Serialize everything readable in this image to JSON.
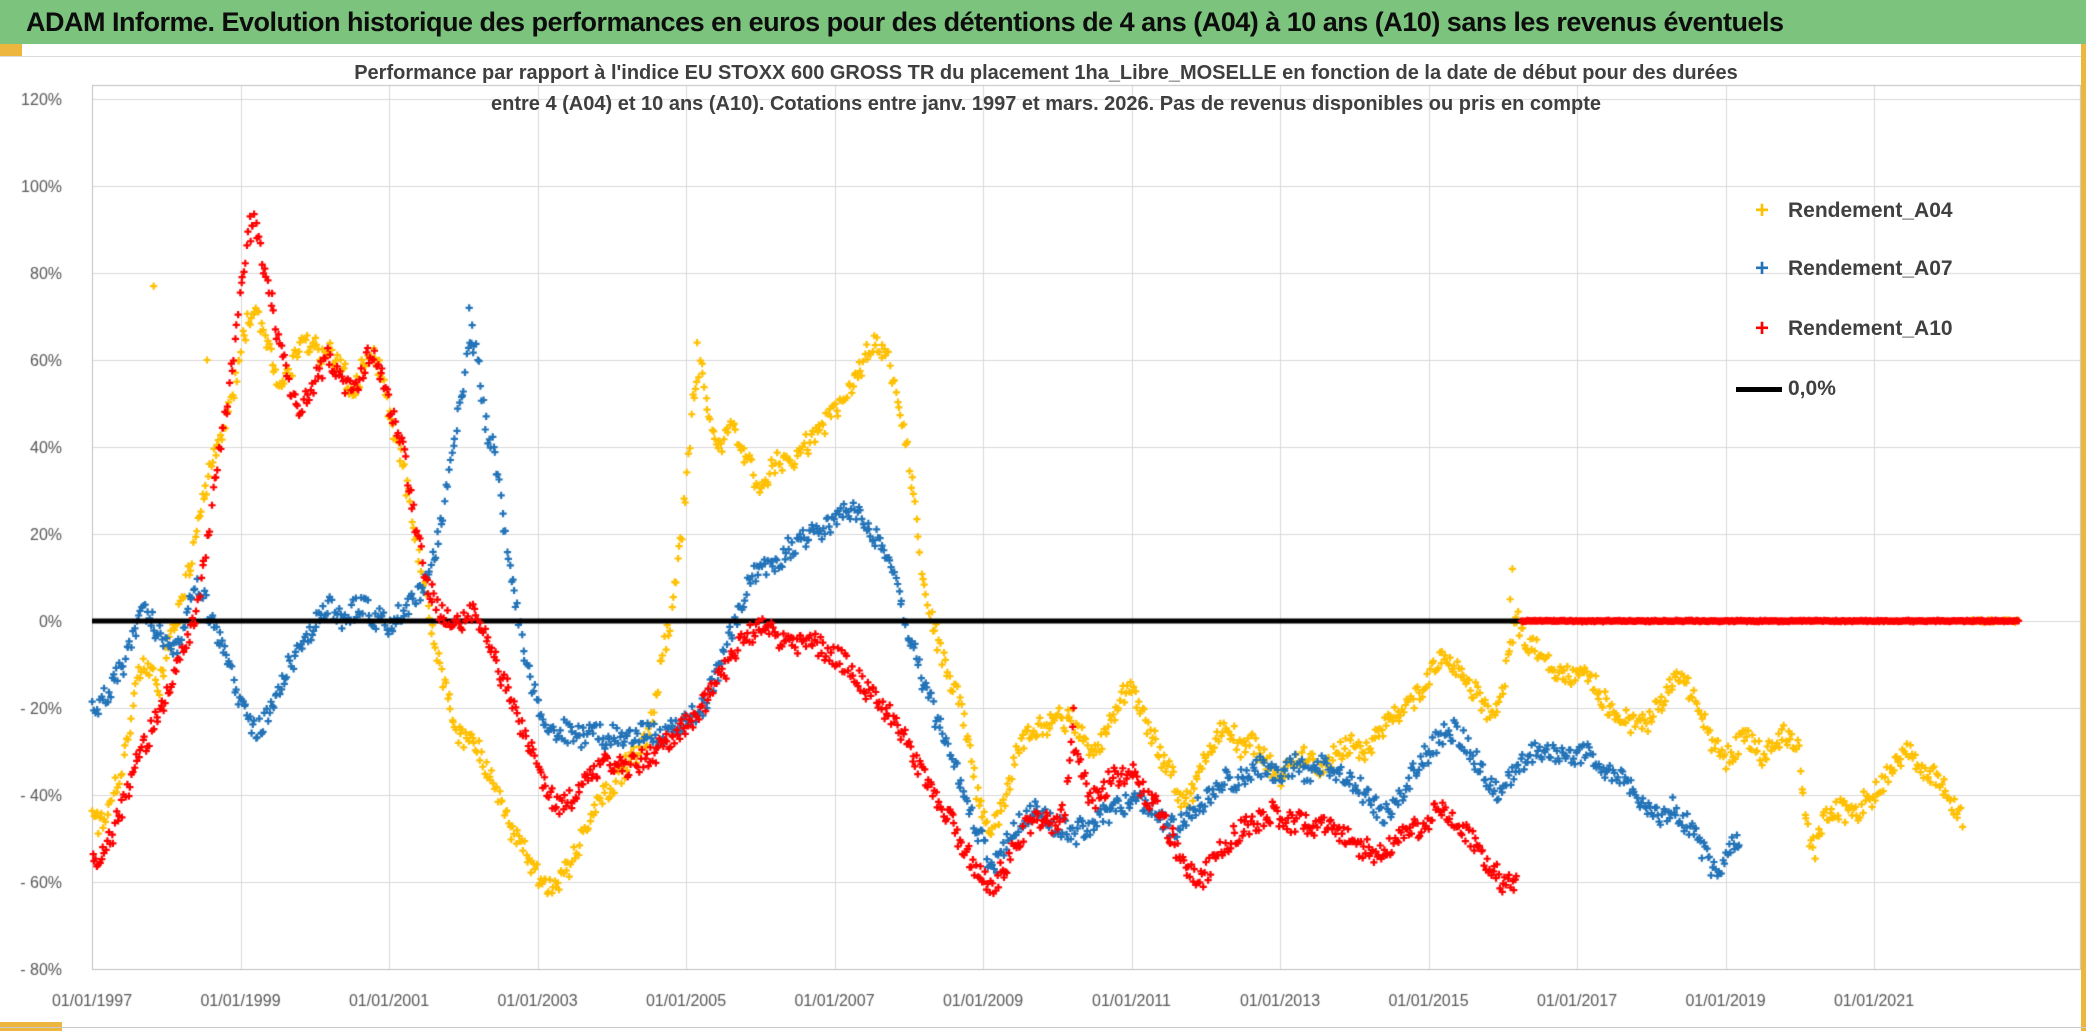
{
  "header": {
    "title": "ADAM Informe. Evolution historique des performances en euros pour des détentions de 4 ans (A04) à 10 ans (A10) sans les revenus éventuels"
  },
  "colors": {
    "header_bg": "#7CC47D",
    "accent_yellow": "#EDB63E",
    "grid": "#D9D9D9",
    "axis_border": "#BFBFBF",
    "tick_text": "#595959",
    "title_text": "#3F3F3F",
    "series_a04": "#FFC000",
    "series_a07": "#2273B8",
    "series_a10": "#FF0000",
    "zero_line": "#000000"
  },
  "chart_data": {
    "type": "scatter",
    "title_line1": "Performance par rapport à l'indice EU STOXX 600 GROSS TR  du placement 1ha_Libre_MOSELLE en fonction de la date de début pour des durées",
    "title_line2": "entre 4 (A04) et 10 ans (A10). Cotations entre janv. 1997 et mars. 2026. Pas de revenus disponibles ou pris en compte",
    "xlabel": "",
    "ylabel": "",
    "x_ticks": [
      "01/01/1997",
      "01/01/1999",
      "01/01/2001",
      "01/01/2003",
      "01/01/2005",
      "01/01/2007",
      "01/01/2009",
      "01/01/2011",
      "01/01/2013",
      "01/01/2015",
      "01/01/2017",
      "01/01/2019",
      "01/01/2021"
    ],
    "x_tick_years": [
      1997,
      1999,
      2001,
      2003,
      2005,
      2007,
      2009,
      2011,
      2013,
      2015,
      2017,
      2019,
      2021
    ],
    "y_ticks": [
      "120%",
      "100%",
      "80%",
      "60%",
      "40%",
      "20%",
      "0%",
      "- 20%",
      "- 40%",
      "- 60%",
      "- 80%"
    ],
    "y_tick_values": [
      120,
      100,
      80,
      60,
      40,
      20,
      0,
      -20,
      -40,
      -60,
      -80
    ],
    "ylim": [
      -80,
      120
    ],
    "xlim_years": [
      1997.0,
      2023.7
    ],
    "grid": true,
    "legend_position": "inside-top-right",
    "legend": {
      "items": [
        {
          "label": "Rendement_A04",
          "color": "#FFC000",
          "marker": "+"
        },
        {
          "label": "Rendement_A07",
          "color": "#2273B8",
          "marker": "+"
        },
        {
          "label": "Rendement_A10",
          "color": "#FF0000",
          "marker": "+"
        },
        {
          "label": "0,0%",
          "color": "#000000",
          "marker": "line"
        }
      ]
    },
    "zero_line": {
      "label": "0,0%",
      "value": 0,
      "x_start": 1997.0,
      "x_end": 2022.95
    },
    "zero_bands": [
      {
        "series": "Rendement_A10",
        "value": 0,
        "start": 2016.25,
        "end": 2022.95
      },
      {
        "series": "Rendement_A04",
        "value": 0,
        "start": 2022.3,
        "end": 2022.95
      }
    ],
    "series": [
      {
        "name": "Rendement_A04",
        "color": "#FFC000",
        "start_year": 1997.0,
        "step_years": 0.1,
        "values": [
          -45,
          -47,
          -44,
          -39,
          -33,
          -26,
          -14,
          -9,
          -12,
          -16,
          -8,
          -2,
          5,
          11,
          18,
          28,
          36,
          42,
          45,
          52,
          62,
          69,
          72,
          68,
          62,
          55,
          56,
          59,
          62,
          64,
          63,
          61,
          63,
          60,
          57,
          52,
          56,
          61,
          63,
          56,
          48,
          42,
          34,
          25,
          15,
          6,
          -3,
          -11,
          -18,
          -24,
          -28,
          -26,
          -29,
          -33,
          -37,
          -41,
          -46,
          -50,
          -52,
          -55,
          -58,
          -61,
          -62,
          -60,
          -57,
          -54,
          -50,
          -46,
          -43,
          -40,
          -38,
          -36,
          -33,
          -31,
          -28,
          -26,
          -18,
          -6,
          0,
          14,
          30,
          52,
          60,
          48,
          42,
          41,
          44,
          42,
          38,
          34,
          31,
          33,
          36,
          37,
          36,
          38,
          40,
          42,
          44,
          46,
          48,
          51,
          54,
          57,
          60,
          63,
          64,
          61,
          55,
          47,
          38,
          24,
          10,
          2,
          -6,
          -11,
          -15,
          -19,
          -28,
          -38,
          -45,
          -49,
          -46,
          -40,
          -34,
          -28,
          -26,
          -24,
          -25,
          -24,
          -22,
          -24,
          -22,
          -25,
          -28,
          -30,
          -27,
          -23,
          -20,
          -17,
          -15,
          -19,
          -23,
          -27,
          -31,
          -34,
          -38,
          -42,
          -40,
          -36,
          -32,
          -29,
          -26,
          -25,
          -27,
          -30,
          -28,
          -30,
          -32,
          -34,
          -36,
          -34,
          -32,
          -30,
          -32,
          -34,
          -33,
          -31,
          -30,
          -29,
          -28,
          -30,
          -29,
          -27,
          -25,
          -23,
          -21,
          -20,
          -18,
          -16,
          -13,
          -10,
          -8,
          -9,
          -11,
          -14,
          -16,
          -18,
          -21,
          -22,
          -16,
          -6,
          0,
          -4,
          -6,
          -7,
          -9,
          -11,
          -12,
          -13,
          -12,
          -13,
          -14,
          -16,
          -19,
          -21,
          -22,
          -23,
          -24,
          -24,
          -22,
          -20,
          -17,
          -14,
          -12,
          -15,
          -19,
          -23,
          -27,
          -30,
          -32,
          -30,
          -28,
          -27,
          -29,
          -31,
          -30,
          -28,
          -26,
          -27,
          -30,
          -48,
          -53,
          -47,
          -44,
          -43,
          -44,
          -45,
          -43,
          -41,
          -40,
          -38,
          -35,
          -32,
          -30,
          -31,
          -33,
          -34,
          -35,
          -37,
          -40,
          -44,
          -46
        ],
        "outliers": [
          [
            1997.83,
            77
          ],
          [
            1998.55,
            60
          ],
          [
            2005.15,
            64
          ],
          [
            2016.1,
            5
          ],
          [
            2016.13,
            12
          ]
        ]
      },
      {
        "name": "Rendement_A07",
        "color": "#2273B8",
        "start_year": 1997.0,
        "step_years": 0.1,
        "values": [
          -21,
          -19,
          -17,
          -14,
          -11,
          -7,
          -2,
          3,
          0,
          -3,
          -5,
          -7,
          -3,
          3,
          8,
          5,
          1,
          -3,
          -8,
          -14,
          -19,
          -23,
          -26,
          -24,
          -20,
          -16,
          -12,
          -9,
          -6,
          -4,
          0,
          2,
          3,
          1,
          0,
          2,
          4,
          3,
          1,
          0,
          -1,
          1,
          3,
          4,
          6,
          9,
          14,
          22,
          33,
          44,
          54,
          66,
          60,
          45,
          40,
          28,
          16,
          6,
          -5,
          -13,
          -18,
          -24,
          -26,
          -24,
          -26,
          -25,
          -27,
          -26,
          -25,
          -27,
          -26,
          -27,
          -28,
          -27,
          -26,
          -25,
          -26,
          -27,
          -25,
          -24,
          -23,
          -22,
          -20,
          -17,
          -13,
          -8,
          -3,
          2,
          7,
          10,
          12,
          13,
          14,
          15,
          17,
          18,
          19,
          20,
          21,
          22,
          23,
          25,
          26,
          25,
          23,
          21,
          18,
          14,
          9,
          4,
          -2,
          -9,
          -14,
          -19,
          -24,
          -28,
          -32,
          -37,
          -43,
          -47,
          -51,
          -57,
          -55,
          -51,
          -48,
          -46,
          -45,
          -44,
          -45,
          -46,
          -47,
          -48,
          -50,
          -48,
          -47,
          -46,
          -45,
          -44,
          -43,
          -42,
          -41,
          -42,
          -43,
          -44,
          -45,
          -47,
          -48,
          -46,
          -45,
          -43,
          -41,
          -39,
          -37,
          -36,
          -38,
          -36,
          -35,
          -34,
          -33,
          -34,
          -35,
          -34,
          -33,
          -34,
          -35,
          -34,
          -33,
          -34,
          -35,
          -36,
          -37,
          -39,
          -41,
          -43,
          -44,
          -43,
          -41,
          -38,
          -35,
          -32,
          -30,
          -28,
          -26,
          -25,
          -26,
          -28,
          -31,
          -34,
          -37,
          -39,
          -38,
          -36,
          -34,
          -32,
          -30,
          -29,
          -30,
          -31,
          -31,
          -32,
          -31,
          -30,
          -31,
          -32,
          -34,
          -35,
          -36,
          -37,
          -39,
          -42,
          -44,
          -45,
          -44,
          -43,
          -45,
          -47,
          -50,
          -53,
          -56,
          -57,
          -54,
          -52,
          -51
        ],
        "outliers": [
          [
            2002.08,
            72
          ],
          [
            2002.12,
            68
          ]
        ]
      },
      {
        "name": "Rendement_A10",
        "color": "#FF0000",
        "start_year": 1997.0,
        "step_years": 0.1,
        "values": [
          -55,
          -56,
          -52,
          -48,
          -43,
          -38,
          -33,
          -29,
          -25,
          -21,
          -17,
          -13,
          -9,
          -4,
          2,
          12,
          24,
          36,
          48,
          60,
          74,
          88,
          92,
          83,
          75,
          66,
          58,
          52,
          49,
          52,
          55,
          58,
          61,
          58,
          55,
          52,
          55,
          60,
          62,
          57,
          50,
          44,
          38,
          28,
          18,
          10,
          5,
          2,
          0,
          -2,
          1,
          3,
          0,
          -4,
          -8,
          -12,
          -16,
          -20,
          -25,
          -29,
          -33,
          -37,
          -41,
          -43,
          -42,
          -40,
          -38,
          -36,
          -34,
          -33,
          -32,
          -33,
          -34,
          -33,
          -32,
          -31,
          -30,
          -29,
          -27,
          -26,
          -24,
          -22,
          -20,
          -18,
          -15,
          -12,
          -9,
          -6,
          -4,
          -3,
          -2,
          -1,
          -3,
          -5,
          -6,
          -5,
          -4,
          -5,
          -6,
          -7,
          -8,
          -9,
          -11,
          -13,
          -15,
          -17,
          -19,
          -21,
          -23,
          -26,
          -29,
          -32,
          -35,
          -38,
          -41,
          -44,
          -47,
          -51,
          -54,
          -57,
          -59,
          -62,
          -59,
          -56,
          -53,
          -50,
          -47,
          -45,
          -46,
          -47,
          -46,
          -44,
          -26,
          -33,
          -39,
          -41,
          -39,
          -37,
          -36,
          -35,
          -34,
          -37,
          -40,
          -42,
          -45,
          -48,
          -52,
          -55,
          -58,
          -60,
          -58,
          -55,
          -53,
          -51,
          -49,
          -48,
          -47,
          -46,
          -45,
          -44,
          -45,
          -46,
          -47,
          -46,
          -47,
          -48,
          -47,
          -48,
          -49,
          -50,
          -51,
          -52,
          -53,
          -53,
          -52,
          -51,
          -50,
          -49,
          -48,
          -47,
          -46,
          -44,
          -43,
          -45,
          -47,
          -49,
          -51,
          -53,
          -56,
          -58,
          -60,
          -61,
          -58
        ],
        "outliers": [
          [
            1999.13,
            93
          ],
          [
            2010.22,
            -20
          ]
        ]
      }
    ]
  }
}
